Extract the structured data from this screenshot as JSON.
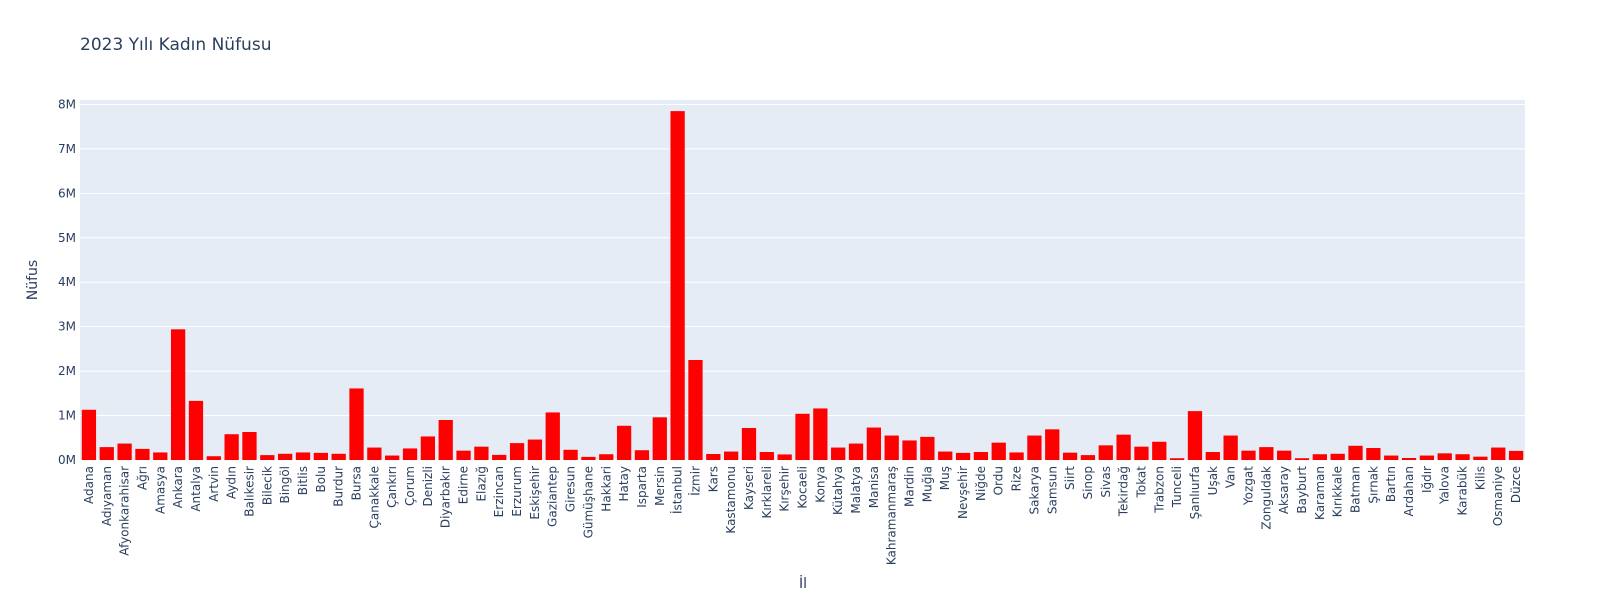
{
  "chart_data": {
    "type": "bar",
    "title": "2023 Yılı Kadın Nüfusu",
    "xlabel": "İl",
    "ylabel": "Nüfus",
    "ylim": [
      0,
      8100000
    ],
    "grid": true,
    "legend": "none",
    "colors": {
      "bar": "#ff0000",
      "plot_bg": "#e5ecf6",
      "grid": "#ffffff",
      "text": "#2a3f5f"
    },
    "y_ticks": [
      {
        "value": 0,
        "label": "0M"
      },
      {
        "value": 1000000,
        "label": "1M"
      },
      {
        "value": 2000000,
        "label": "2M"
      },
      {
        "value": 3000000,
        "label": "3M"
      },
      {
        "value": 4000000,
        "label": "4M"
      },
      {
        "value": 5000000,
        "label": "5M"
      },
      {
        "value": 6000000,
        "label": "6M"
      },
      {
        "value": 7000000,
        "label": "7M"
      },
      {
        "value": 8000000,
        "label": "8M"
      }
    ],
    "categories": [
      "Adana",
      "Adıyaman",
      "Afyonkarahisar",
      "Ağrı",
      "Amasya",
      "Ankara",
      "Antalya",
      "Artvin",
      "Aydın",
      "Balıkesir",
      "Bilecik",
      "Bingöl",
      "Bitlis",
      "Bolu",
      "Burdur",
      "Bursa",
      "Çanakkale",
      "Çankırı",
      "Çorum",
      "Denizli",
      "Diyarbakır",
      "Edirne",
      "Elazığ",
      "Erzincan",
      "Erzurum",
      "Eskişehir",
      "Gaziantep",
      "Giresun",
      "Gümüşhane",
      "Hakkari",
      "Hatay",
      "Isparta",
      "Mersin",
      "İstanbul",
      "İzmir",
      "Kars",
      "Kastamonu",
      "Kayseri",
      "Kırklareli",
      "Kırşehir",
      "Kocaeli",
      "Konya",
      "Kütahya",
      "Malatya",
      "Manisa",
      "Kahramanmaraş",
      "Mardin",
      "Muğla",
      "Muş",
      "Nevşehir",
      "Niğde",
      "Ordu",
      "Rize",
      "Sakarya",
      "Samsun",
      "Siirt",
      "Sinop",
      "Sivas",
      "Tekirdağ",
      "Tokat",
      "Trabzon",
      "Tunceli",
      "Şanlıurfa",
      "Uşak",
      "Van",
      "Yozgat",
      "Zonguldak",
      "Aksaray",
      "Bayburt",
      "Karaman",
      "Kırıkkale",
      "Batman",
      "Şırnak",
      "Bartın",
      "Ardahan",
      "Iğdır",
      "Yalova",
      "Karabük",
      "Kilis",
      "Osmaniye",
      "Düzce"
    ],
    "values": [
      1130000,
      290000,
      370000,
      250000,
      170000,
      2940000,
      1330000,
      85000,
      580000,
      630000,
      110000,
      140000,
      170000,
      160000,
      140000,
      1610000,
      280000,
      100000,
      260000,
      530000,
      900000,
      210000,
      300000,
      115000,
      380000,
      460000,
      1070000,
      230000,
      70000,
      130000,
      770000,
      220000,
      960000,
      7850000,
      2250000,
      135000,
      190000,
      720000,
      180000,
      125000,
      1040000,
      1160000,
      280000,
      370000,
      730000,
      550000,
      440000,
      520000,
      190000,
      160000,
      180000,
      390000,
      170000,
      550000,
      690000,
      165000,
      110000,
      330000,
      570000,
      300000,
      410000,
      40000,
      1100000,
      180000,
      550000,
      210000,
      290000,
      210000,
      40000,
      130000,
      140000,
      320000,
      270000,
      100000,
      45000,
      100000,
      150000,
      130000,
      75000,
      280000,
      205000
    ]
  }
}
